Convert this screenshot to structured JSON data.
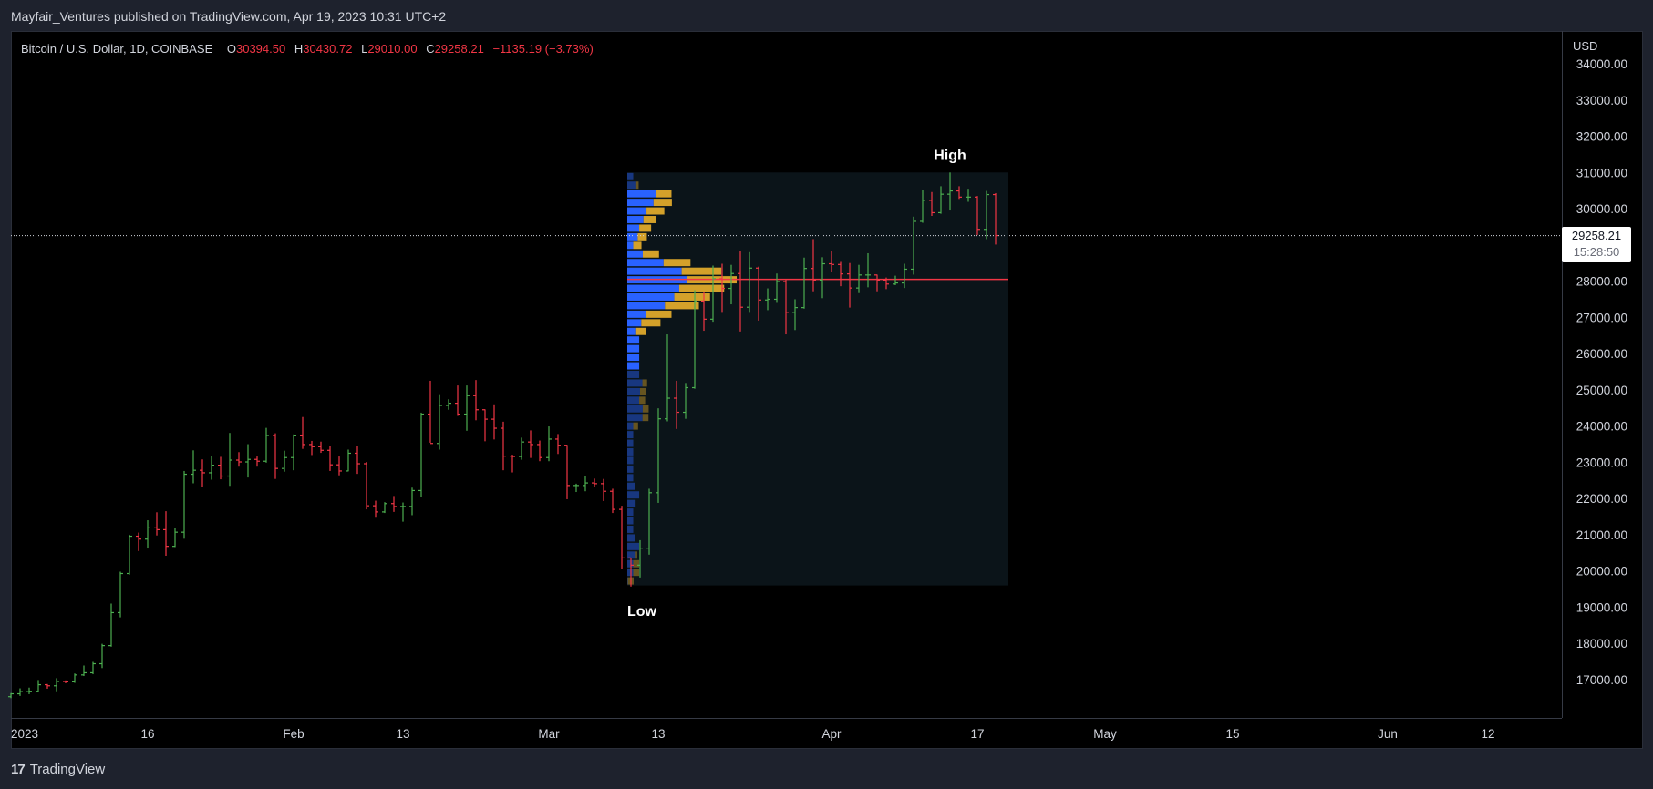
{
  "header": {
    "published": "Mayfair_Ventures published on TradingView.com, Apr 19, 2023 10:31 UTC+2"
  },
  "legend": {
    "symbol": "Bitcoin / U.S. Dollar, 1D, COINBASE",
    "o_label": "O",
    "o_value": "30394.50",
    "h_label": "H",
    "h_value": "30430.72",
    "l_label": "L",
    "l_value": "29010.00",
    "c_label": "C",
    "c_value": "29258.21",
    "change": "−1135.19 (−3.73%)"
  },
  "price_axis": {
    "currency": "USD",
    "last_price": "29258.21",
    "countdown": "15:28:50"
  },
  "annotations": {
    "high": "High",
    "low": "Low"
  },
  "footer": {
    "brand": "TradingView",
    "logo_icon": "tradingview-logo-icon"
  },
  "colors": {
    "up": "#26a69a",
    "up_bar": "#4caf50",
    "down": "#f23645",
    "profile_up": "#2962ff",
    "profile_down": "#d4a12a",
    "poc": "#f23645",
    "range_bg": "#0b1419"
  },
  "chart_data": {
    "type": "ohlc",
    "title": "Bitcoin / U.S. Dollar, 1D, COINBASE",
    "ylim": [
      16000,
      34500
    ],
    "yticks": [
      17000,
      18000,
      19000,
      20000,
      21000,
      22000,
      23000,
      24000,
      25000,
      26000,
      27000,
      28000,
      29000,
      30000,
      31000,
      32000,
      33000,
      34000
    ],
    "xticks": [
      {
        "date": "2023-01-01",
        "label": "2023"
      },
      {
        "date": "2023-01-16",
        "label": "16"
      },
      {
        "date": "2023-02-01",
        "label": "Feb"
      },
      {
        "date": "2023-02-13",
        "label": "13"
      },
      {
        "date": "2023-03-01",
        "label": "Mar"
      },
      {
        "date": "2023-03-13",
        "label": "13"
      },
      {
        "date": "2023-04-01",
        "label": "Apr"
      },
      {
        "date": "2023-04-17",
        "label": "17"
      },
      {
        "date": "2023-05-01",
        "label": "May"
      },
      {
        "date": "2023-05-15",
        "label": "15"
      },
      {
        "date": "2023-06-01",
        "label": "Jun"
      },
      {
        "date": "2023-06-12",
        "label": "12"
      }
    ],
    "x_range": [
      "2023-01-01",
      "2023-06-25"
    ],
    "grid": false,
    "volume_profile": {
      "start": "2023-03-10",
      "end": "2023-04-20",
      "low": 19600,
      "high": 31000,
      "poc": 28050
    },
    "ohlc": [
      [
        "2023-01-01",
        16530,
        16630,
        16490,
        16610
      ],
      [
        "2023-01-02",
        16610,
        16760,
        16550,
        16670
      ],
      [
        "2023-01-03",
        16670,
        16780,
        16600,
        16680
      ],
      [
        "2023-01-04",
        16680,
        16990,
        16660,
        16860
      ],
      [
        "2023-01-05",
        16860,
        16880,
        16750,
        16830
      ],
      [
        "2023-01-06",
        16830,
        17040,
        16680,
        16950
      ],
      [
        "2023-01-07",
        16950,
        16980,
        16900,
        16940
      ],
      [
        "2023-01-08",
        16940,
        17170,
        16910,
        17130
      ],
      [
        "2023-01-09",
        17130,
        17390,
        17100,
        17190
      ],
      [
        "2023-01-10",
        17190,
        17490,
        17150,
        17440
      ],
      [
        "2023-01-11",
        17440,
        17990,
        17320,
        17940
      ],
      [
        "2023-01-12",
        17940,
        19100,
        17910,
        18850
      ],
      [
        "2023-01-13",
        18850,
        19980,
        18720,
        19930
      ],
      [
        "2023-01-14",
        19930,
        21000,
        19900,
        20960
      ],
      [
        "2023-01-15",
        20960,
        21060,
        20550,
        20880
      ],
      [
        "2023-01-16",
        20880,
        21400,
        20620,
        21190
      ],
      [
        "2023-01-17",
        21190,
        21620,
        20980,
        21140
      ],
      [
        "2023-01-18",
        21140,
        21650,
        20420,
        20680
      ],
      [
        "2023-01-19",
        20680,
        21190,
        20660,
        21070
      ],
      [
        "2023-01-20",
        21070,
        22760,
        20890,
        22670
      ],
      [
        "2023-01-21",
        22670,
        23330,
        22420,
        22780
      ],
      [
        "2023-01-22",
        22780,
        23080,
        22320,
        22710
      ],
      [
        "2023-01-23",
        22710,
        23170,
        22520,
        22920
      ],
      [
        "2023-01-24",
        22920,
        23150,
        22530,
        22620
      ],
      [
        "2023-01-25",
        22620,
        23810,
        22350,
        23060
      ],
      [
        "2023-01-26",
        23060,
        23280,
        22880,
        23010
      ],
      [
        "2023-01-27",
        23010,
        23500,
        22580,
        23080
      ],
      [
        "2023-01-28",
        23080,
        23160,
        22880,
        23030
      ],
      [
        "2023-01-29",
        23030,
        23950,
        22990,
        23740
      ],
      [
        "2023-01-30",
        23740,
        23800,
        22540,
        22830
      ],
      [
        "2023-01-31",
        22830,
        23320,
        22740,
        23130
      ],
      [
        "2023-02-01",
        23130,
        23770,
        22780,
        23730
      ],
      [
        "2023-02-02",
        23730,
        24250,
        23370,
        23490
      ],
      [
        "2023-02-03",
        23490,
        23590,
        23200,
        23430
      ],
      [
        "2023-02-04",
        23430,
        23570,
        23260,
        23330
      ],
      [
        "2023-02-05",
        23330,
        23440,
        22760,
        22930
      ],
      [
        "2023-02-06",
        22930,
        23160,
        22640,
        22760
      ],
      [
        "2023-02-07",
        22760,
        23350,
        22750,
        23250
      ],
      [
        "2023-02-08",
        23250,
        23450,
        22680,
        22960
      ],
      [
        "2023-02-09",
        22960,
        23010,
        21700,
        21800
      ],
      [
        "2023-02-10",
        21800,
        21940,
        21470,
        21630
      ],
      [
        "2023-02-11",
        21630,
        21900,
        21600,
        21860
      ],
      [
        "2023-02-12",
        21860,
        22070,
        21630,
        21780
      ],
      [
        "2023-02-13",
        21780,
        21890,
        21360,
        21780
      ],
      [
        "2023-02-14",
        21780,
        22300,
        21540,
        22220
      ],
      [
        "2023-02-15",
        22220,
        24370,
        22050,
        24330
      ],
      [
        "2023-02-16",
        24330,
        25250,
        23540,
        23520
      ],
      [
        "2023-02-17",
        23520,
        24880,
        23350,
        24570
      ],
      [
        "2023-02-18",
        24570,
        24740,
        24450,
        24630
      ],
      [
        "2023-02-19",
        24630,
        25120,
        24280,
        24330
      ],
      [
        "2023-02-20",
        24330,
        25120,
        23870,
        24840
      ],
      [
        "2023-02-21",
        24840,
        25270,
        24160,
        24450
      ],
      [
        "2023-02-22",
        24450,
        24460,
        23580,
        24190
      ],
      [
        "2023-02-23",
        24190,
        24600,
        23630,
        23940
      ],
      [
        "2023-02-24",
        23940,
        24120,
        22780,
        23170
      ],
      [
        "2023-02-25",
        23170,
        23210,
        22720,
        23160
      ],
      [
        "2023-02-26",
        23160,
        23680,
        23070,
        23560
      ],
      [
        "2023-02-27",
        23560,
        23880,
        23120,
        23490
      ],
      [
        "2023-02-28",
        23490,
        23600,
        23030,
        23130
      ],
      [
        "2023-03-01",
        23130,
        23990,
        23030,
        23640
      ],
      [
        "2023-03-02",
        23640,
        23780,
        23230,
        23470
      ],
      [
        "2023-03-03",
        23470,
        23480,
        21980,
        22360
      ],
      [
        "2023-03-04",
        22360,
        22410,
        22180,
        22360
      ],
      [
        "2023-03-05",
        22360,
        22610,
        22200,
        22430
      ],
      [
        "2023-03-06",
        22430,
        22550,
        22310,
        22410
      ],
      [
        "2023-03-07",
        22410,
        22540,
        21930,
        22200
      ],
      [
        "2023-03-08",
        22200,
        22270,
        21600,
        21700
      ],
      [
        "2023-03-09",
        21700,
        21800,
        20060,
        20360
      ],
      [
        "2023-03-10",
        20360,
        20370,
        19570,
        20160
      ],
      [
        "2023-03-11",
        20160,
        20850,
        19820,
        20630
      ],
      [
        "2023-03-12",
        20630,
        22270,
        20450,
        22160
      ],
      [
        "2023-03-13",
        22160,
        24490,
        21880,
        24200
      ],
      [
        "2023-03-14",
        24200,
        26530,
        24130,
        24770
      ],
      [
        "2023-03-15",
        24770,
        25250,
        23920,
        24380
      ],
      [
        "2023-03-16",
        24380,
        25190,
        24200,
        25060
      ],
      [
        "2023-03-17",
        25060,
        27750,
        25030,
        27450
      ],
      [
        "2023-03-18",
        27450,
        27710,
        26630,
        26950
      ],
      [
        "2023-03-19",
        26950,
        28430,
        26880,
        28070
      ],
      [
        "2023-03-20",
        28070,
        28480,
        27150,
        27800
      ],
      [
        "2023-03-21",
        27800,
        28450,
        27360,
        28210
      ],
      [
        "2023-03-22",
        28210,
        28840,
        26610,
        27280
      ],
      [
        "2023-03-23",
        27280,
        28800,
        27150,
        28360
      ],
      [
        "2023-03-24",
        28360,
        28400,
        26910,
        27480
      ],
      [
        "2023-03-25",
        27480,
        27800,
        27200,
        27500
      ],
      [
        "2023-03-26",
        27500,
        28210,
        27400,
        27990
      ],
      [
        "2023-03-27",
        27990,
        28050,
        26530,
        27130
      ],
      [
        "2023-03-28",
        27130,
        27500,
        26650,
        27270
      ],
      [
        "2023-03-29",
        27270,
        28650,
        27240,
        28350
      ],
      [
        "2023-03-30",
        28350,
        29160,
        27720,
        28030
      ],
      [
        "2023-03-31",
        28030,
        28660,
        27530,
        28480
      ],
      [
        "2023-04-01",
        28480,
        28820,
        28260,
        28460
      ],
      [
        "2023-04-02",
        28460,
        28530,
        27860,
        28200
      ],
      [
        "2023-04-03",
        28200,
        28500,
        27270,
        27810
      ],
      [
        "2023-04-04",
        27810,
        28450,
        27670,
        28170
      ],
      [
        "2023-04-05",
        28170,
        28770,
        27830,
        28170
      ],
      [
        "2023-04-06",
        28170,
        28180,
        27720,
        28030
      ],
      [
        "2023-04-07",
        28030,
        28100,
        27780,
        27920
      ],
      [
        "2023-04-08",
        27920,
        28150,
        27890,
        27950
      ],
      [
        "2023-04-09",
        27950,
        28480,
        27810,
        28330
      ],
      [
        "2023-04-10",
        28330,
        29780,
        28180,
        29650
      ],
      [
        "2023-04-11",
        29650,
        30520,
        29610,
        30230
      ],
      [
        "2023-04-12",
        30230,
        30460,
        29800,
        29890
      ],
      [
        "2023-04-13",
        29890,
        30620,
        29860,
        30400
      ],
      [
        "2023-04-14",
        30400,
        31000,
        29950,
        30490
      ],
      [
        "2023-04-15",
        30490,
        30620,
        30270,
        30320
      ],
      [
        "2023-04-16",
        30320,
        30550,
        30190,
        30320
      ],
      [
        "2023-04-17",
        30320,
        30350,
        29270,
        29430
      ],
      [
        "2023-04-18",
        29430,
        30490,
        29160,
        30390
      ],
      [
        "2023-04-19",
        30390,
        30430,
        29010,
        29258
      ]
    ]
  }
}
